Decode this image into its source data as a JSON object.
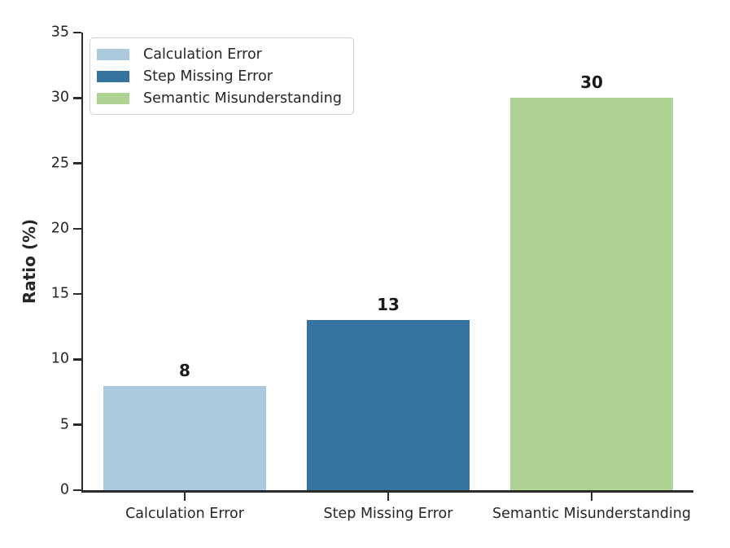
{
  "chart_data": {
    "type": "bar",
    "title": "",
    "xlabel": "",
    "ylabel": "Ratio (%)",
    "categories": [
      "Calculation Error",
      "Step Missing Error",
      "Semantic Misunderstanding"
    ],
    "values": [
      8,
      13,
      30
    ],
    "bar_value_labels": [
      "8",
      "13",
      "30"
    ],
    "bar_colors": [
      "#abcade",
      "#3473a0",
      "#afd392"
    ],
    "ylim": [
      0,
      35
    ],
    "yticks": [
      0,
      5,
      10,
      15,
      20,
      25,
      30,
      35
    ],
    "grid": false,
    "legend": {
      "position": "upper-left",
      "entries": [
        {
          "label": "Calculation Error",
          "color": "#abcade"
        },
        {
          "label": "Step Missing Error",
          "color": "#3473a0"
        },
        {
          "label": "Semantic Misunderstanding",
          "color": "#afd392"
        }
      ]
    }
  },
  "colors": {
    "background": "#ffffff",
    "axis": "#2b2b2b",
    "tick_label_text": "#262626",
    "value_label_text": "#1a1a1a",
    "legend_border": "#d2d2d2"
  }
}
